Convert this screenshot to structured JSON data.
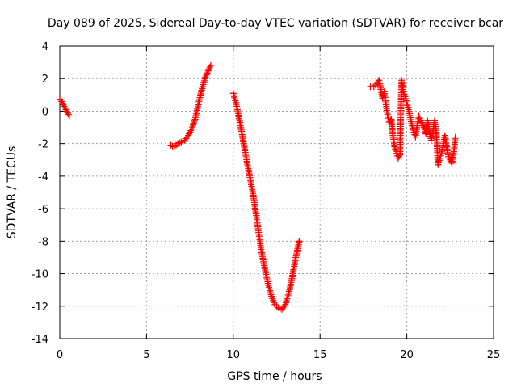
{
  "chart_data": {
    "type": "scatter",
    "title": "Day 089 of 2025, Sidereal Day-to-day VTEC variation (SDTVAR) for receiver bcar",
    "xlabel": "GPS time / hours",
    "ylabel": "SDTVAR / TECUs",
    "xlim": [
      0,
      25
    ],
    "ylim": [
      -14,
      4
    ],
    "xticks": [
      0,
      5,
      10,
      15,
      20,
      25
    ],
    "yticks": [
      -14,
      -12,
      -10,
      -8,
      -6,
      -4,
      -2,
      0,
      2,
      4
    ],
    "grid": true,
    "marker": "+",
    "marker_color": "#ff0000",
    "series": [
      {
        "name": "segment-1",
        "x": [
          0.0,
          0.1,
          0.2,
          0.3,
          0.4,
          0.5,
          0.55
        ],
        "y": [
          0.7,
          0.6,
          0.4,
          0.2,
          0.0,
          -0.2,
          -0.3
        ]
      },
      {
        "name": "segment-2",
        "x": [
          6.4,
          6.6,
          6.8,
          7.0,
          7.2,
          7.4,
          7.6,
          7.8,
          8.0,
          8.2,
          8.4,
          8.6,
          8.7
        ],
        "y": [
          -2.1,
          -2.2,
          -2.0,
          -1.9,
          -1.8,
          -1.5,
          -1.1,
          -0.5,
          0.5,
          1.4,
          2.1,
          2.6,
          2.8
        ]
      },
      {
        "name": "segment-3",
        "x": [
          10.0,
          10.2,
          10.4,
          10.6,
          10.8,
          11.0,
          11.2,
          11.4,
          11.6,
          11.8,
          12.0,
          12.2,
          12.4,
          12.6,
          12.8,
          13.0,
          13.2,
          13.4,
          13.6,
          13.8
        ],
        "y": [
          1.1,
          0.3,
          -0.8,
          -2.0,
          -3.2,
          -4.3,
          -5.5,
          -7.0,
          -8.5,
          -9.6,
          -10.6,
          -11.4,
          -11.9,
          -12.1,
          -12.2,
          -11.9,
          -11.2,
          -10.2,
          -9.0,
          -8.0
        ]
      },
      {
        "name": "segment-4",
        "x": [
          17.9,
          18.1,
          18.3,
          18.4,
          18.6,
          18.7,
          18.8,
          18.9,
          19.0,
          19.1,
          19.2,
          19.3,
          19.4,
          19.5,
          19.6,
          19.7,
          19.75,
          19.8,
          19.9,
          20.0,
          20.1,
          20.2,
          20.3,
          20.4,
          20.5,
          20.6,
          20.7,
          20.8,
          21.0,
          21.1,
          21.2,
          21.3,
          21.4,
          21.5,
          21.6,
          21.7,
          21.8,
          21.9,
          22.0,
          22.1,
          22.2,
          22.3,
          22.4,
          22.5,
          22.6,
          22.7,
          22.8
        ],
        "y": [
          1.5,
          1.5,
          1.7,
          1.9,
          0.8,
          1.2,
          0.4,
          -0.3,
          -0.8,
          -0.5,
          -1.5,
          -2.2,
          -2.6,
          -2.9,
          -2.7,
          1.9,
          1.6,
          1.2,
          0.9,
          0.5,
          0.1,
          -0.4,
          -0.9,
          -1.3,
          -1.6,
          -0.9,
          -0.3,
          -0.6,
          -1.0,
          -1.4,
          -0.6,
          -1.2,
          -1.8,
          -1.4,
          -0.6,
          -1.3,
          -3.3,
          -2.9,
          -2.6,
          -2.1,
          -1.5,
          -2.2,
          -2.8,
          -3.0,
          -3.2,
          -2.6,
          -1.6
        ]
      }
    ]
  }
}
